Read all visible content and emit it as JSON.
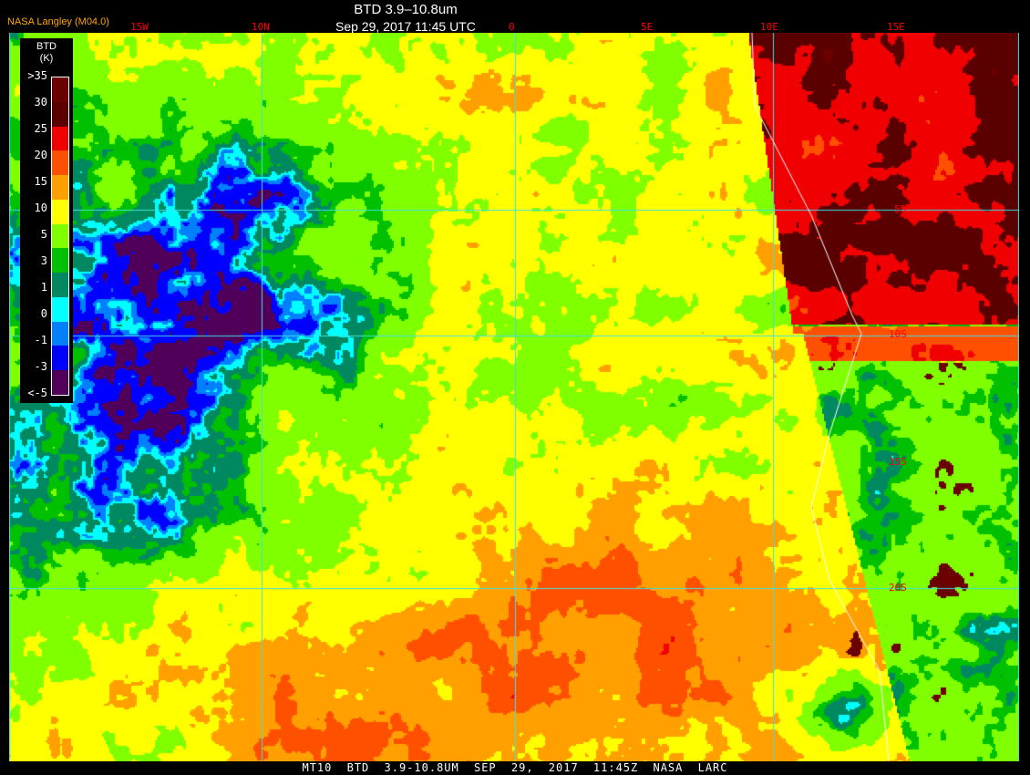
{
  "header": {
    "title": "BTD 3.9–10.8um",
    "timestamp": "Sep 29, 2017 11:45 UTC",
    "credit": "NASA Langley (M04.0)"
  },
  "longitude_labels": [
    "15W",
    "10N",
    "0",
    "5E",
    "10E",
    "15E"
  ],
  "latitude_labels": [
    "5S",
    "10S",
    "15S",
    "20S"
  ],
  "legend": {
    "title": "BTD",
    "unit": "(K)",
    "labels": [
      ">35",
      "30",
      "25",
      "20",
      "15",
      "10",
      "5",
      "3",
      "1",
      "0",
      "-1",
      "-3",
      "<-5"
    ],
    "colors": [
      "#6a0000",
      "#5a0000",
      "#f00000",
      "#ff5000",
      "#ffa000",
      "#ffff00",
      "#80ff00",
      "#00c000",
      "#008860",
      "#00ffff",
      "#0080ff",
      "#0000ff",
      "#500058"
    ]
  },
  "footer": "MT10 BTD 3.9-10.8UM SEP 29, 2017 11:45Z NASA LARC",
  "grid_color": "#40e0e0"
}
